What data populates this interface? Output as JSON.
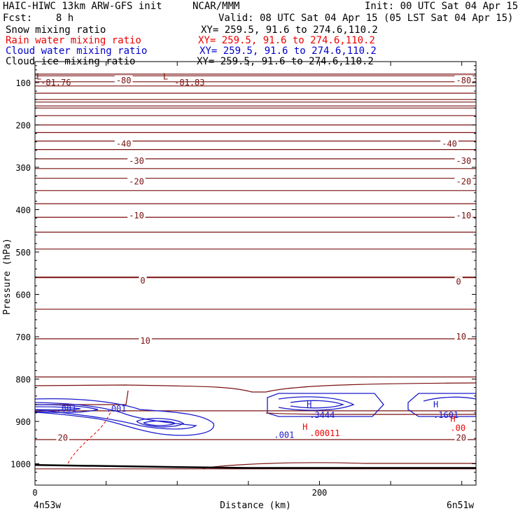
{
  "header": {
    "title_left": "HAIC-HIWC 13km ARW-GFS init",
    "org": "NCAR/MMM",
    "init": "Init: 00 UTC Sat 04 Apr 15",
    "fcst": "Fcst:    8 h",
    "valid": "Valid: 08 UTC Sat 04 Apr 15 (05 LST Sat 04 Apr 15)"
  },
  "fields": [
    {
      "label": "Snow mixing ratio",
      "xy": "XY= 259.5, 91.6 to 274.6,110.2",
      "color": "#000000"
    },
    {
      "label": "Rain water mixing ratio",
      "xy": "XY= 259.5, 91.6 to 274.6,110.2",
      "color": "#ee0000"
    },
    {
      "label": "Cloud water mixing ratio",
      "xy": "XY= 259.5, 91.6 to 274.6,110.2",
      "color": "#0000cc"
    },
    {
      "label": "Cloud ice mixing ratio",
      "xy": "XY= 259.5, 91.6 to 274.6,110.2",
      "color": "#000000"
    }
  ],
  "colors": {
    "temperature": "#7a1010",
    "terrain": "#000000",
    "cloud_water": "#1a1acc",
    "rain": "#ee0000"
  },
  "chart_data": {
    "type": "contour",
    "xlabel": "Distance (km)",
    "ylabel": "Pressure (hPa)",
    "xlim": [
      0,
      310
    ],
    "ylim": [
      1050,
      75
    ],
    "x_ticks": [
      0,
      50,
      100,
      150,
      200,
      250,
      300
    ],
    "x_tick_labels": [
      "0",
      "",
      "",
      "",
      "200",
      "",
      ""
    ],
    "y_ticks": [
      100,
      200,
      300,
      400,
      500,
      600,
      700,
      800,
      900,
      1000
    ],
    "y_tick_labels": [
      "100",
      "200",
      "300",
      "400",
      "500",
      "600",
      "700",
      "800",
      "900",
      "1000"
    ],
    "endpoint_labels": {
      "left": "4n53w",
      "right": "6n51w"
    },
    "temperature_levels_hpa": [
      80,
      84,
      98,
      108,
      125,
      140,
      146,
      155,
      160,
      178,
      200,
      218,
      238,
      258,
      280,
      303,
      326,
      355,
      386,
      418,
      453,
      493,
      560,
      635,
      705,
      795,
      875,
      943,
      1012
    ],
    "temperature_labels": [
      {
        "text": "-80",
        "x": 57,
        "p": 95
      },
      {
        "text": "-80",
        "x": 296,
        "p": 95
      },
      {
        "text": "-40",
        "x": 57,
        "p": 245
      },
      {
        "text": "-40",
        "x": 286,
        "p": 245
      },
      {
        "text": "-30",
        "x": 66,
        "p": 285
      },
      {
        "text": "-30",
        "x": 296,
        "p": 285
      },
      {
        "text": "-20",
        "x": 66,
        "p": 334
      },
      {
        "text": "-20",
        "x": 296,
        "p": 334
      },
      {
        "text": "-10",
        "x": 66,
        "p": 414
      },
      {
        "text": "-10",
        "x": 296,
        "p": 414
      },
      {
        "text": "0",
        "x": 74,
        "p": 568
      },
      {
        "text": "0",
        "x": 296,
        "p": 570
      },
      {
        "text": "10",
        "x": 74,
        "p": 710
      },
      {
        "text": "10",
        "x": 296,
        "p": 700
      },
      {
        "text": "20",
        "x": 16,
        "p": 939
      },
      {
        "text": "20",
        "x": 296,
        "p": 939
      }
    ],
    "extrema": [
      {
        "text": "L",
        "x": 1,
        "p": 86,
        "color": "#7a1010"
      },
      {
        "text": "-81.76",
        "x": 4,
        "p": 100,
        "color": "#7a1010"
      },
      {
        "text": "L",
        "x": 90,
        "p": 86,
        "color": "#7a1010"
      },
      {
        "text": "-81.83",
        "x": 98,
        "p": 100,
        "color": "#7a1010"
      },
      {
        "text": "H",
        "x": 191,
        "p": 860,
        "color": "#1a1acc"
      },
      {
        "text": ".3444",
        "x": 193,
        "p": 885,
        "color": "#1a1acc"
      },
      {
        "text": "H",
        "x": 280,
        "p": 860,
        "color": "#1a1acc"
      },
      {
        "text": ".1601",
        "x": 280,
        "p": 885,
        "color": "#1a1acc"
      },
      {
        "text": ".001",
        "x": 15,
        "p": 870,
        "color": "#1a1acc"
      },
      {
        "text": ".001",
        "x": 50,
        "p": 870,
        "color": "#1a1acc"
      },
      {
        "text": ".001",
        "x": 168,
        "p": 932,
        "color": "#1a1acc"
      },
      {
        "text": "H",
        "x": 188,
        "p": 913,
        "color": "#ee0000"
      },
      {
        "text": ".00011",
        "x": 193,
        "p": 928,
        "color": "#ee0000"
      },
      {
        "text": "H",
        "x": 292,
        "p": 894,
        "color": "#ee0000"
      },
      {
        "text": ".00",
        "x": 292,
        "p": 916,
        "color": "#ee0000"
      }
    ],
    "terrain": [
      [
        0,
        1003
      ],
      [
        100,
        1008
      ],
      [
        150,
        1010
      ],
      [
        200,
        1010
      ],
      [
        310,
        1010
      ]
    ]
  }
}
